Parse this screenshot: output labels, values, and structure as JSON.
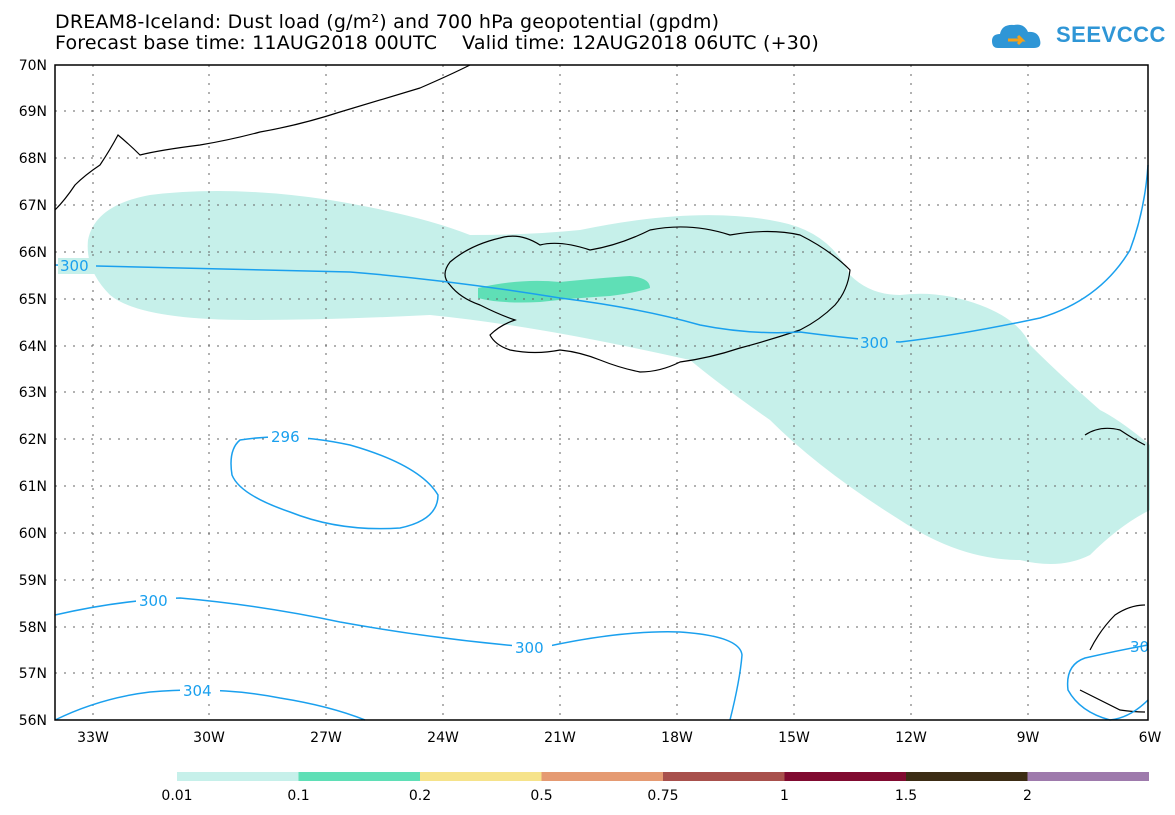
{
  "title_line1": "DREAM8-Iceland: Dust load (g/m²) and 700 hPa geopotential (gpdm)",
  "title_line2": "Forecast base time: 11AUG2018 00UTC    Valid time: 12AUG2018 06UTC (+30)",
  "logo_text": "SEEVCCC",
  "map": {
    "lat_labels": [
      "70N",
      "69N",
      "68N",
      "67N",
      "66N",
      "65N",
      "64N",
      "63N",
      "62N",
      "61N",
      "60N",
      "59N",
      "58N",
      "57N",
      "56N"
    ],
    "lon_labels": [
      "33W",
      "30W",
      "27W",
      "24W",
      "21W",
      "18W",
      "15W",
      "12W",
      "9W",
      "6W"
    ],
    "contour_labels": [
      {
        "text": "300",
        "id": "c300a"
      },
      {
        "text": "300",
        "id": "c300b"
      },
      {
        "text": "296",
        "id": "c296"
      },
      {
        "text": "300",
        "id": "c300c"
      },
      {
        "text": "300",
        "id": "c300d"
      },
      {
        "text": "304",
        "id": "c304"
      },
      {
        "text": "30",
        "id": "c30e"
      }
    ]
  },
  "colorbar": {
    "colors": [
      "#c6f0ea",
      "#5fdfb6",
      "#f6e38a",
      "#e59a72",
      "#a8504c",
      "#800a30",
      "#3c2c14",
      "#9e7aac"
    ],
    "labels": [
      "0.01",
      "0.1",
      "0.2",
      "0.5",
      "0.75",
      "1",
      "1.5",
      "2"
    ]
  },
  "colors": {
    "contour": "#1aa0ee",
    "dust_light": "#c6f0ea",
    "dust_mid": "#5fdfb6",
    "logo": "#2f96d6"
  }
}
